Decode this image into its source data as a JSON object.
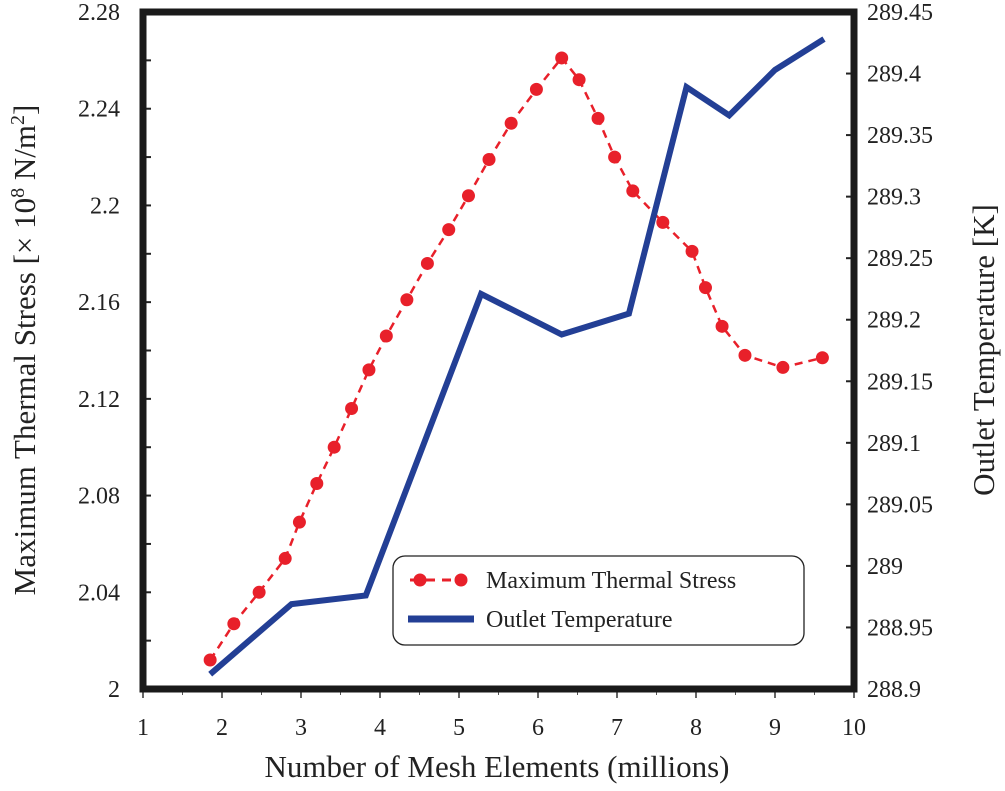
{
  "chart_data": {
    "type": "line",
    "xlabel": "Number of Mesh Elements (millions)",
    "ylabel_left_main": "Maximum Thermal Stress [× 10",
    "ylabel_left_exp": "8",
    "ylabel_left_unit": " N/m",
    "ylabel_left_sq": "2",
    "ylabel_left_end": "]",
    "ylabel_right": "Outlet Temperature [K]",
    "xlim": [
      1,
      10
    ],
    "ylim_left": [
      2.0,
      2.28
    ],
    "ylim_right": [
      288.9,
      289.45
    ],
    "x_ticks": [
      {
        "value": 1,
        "label": "1"
      },
      {
        "value": 2,
        "label": "2"
      },
      {
        "value": 3,
        "label": "3"
      },
      {
        "value": 4,
        "label": "4"
      },
      {
        "value": 5,
        "label": "5"
      },
      {
        "value": 6,
        "label": "6"
      },
      {
        "value": 7,
        "label": "7"
      },
      {
        "value": 8,
        "label": "8"
      },
      {
        "value": 9,
        "label": "9"
      },
      {
        "value": 10,
        "label": "10"
      }
    ],
    "y_left_ticks": [
      {
        "value": 2.0,
        "label": "2"
      },
      {
        "value": 2.04,
        "label": "2.04"
      },
      {
        "value": 2.08,
        "label": "2.08"
      },
      {
        "value": 2.12,
        "label": "2.12"
      },
      {
        "value": 2.16,
        "label": "2.16"
      },
      {
        "value": 2.2,
        "label": "2.2"
      },
      {
        "value": 2.24,
        "label": "2.24"
      },
      {
        "value": 2.28,
        "label": "2.28"
      }
    ],
    "y_right_ticks": [
      {
        "value": 288.9,
        "label": "288.9"
      },
      {
        "value": 288.95,
        "label": "288.95"
      },
      {
        "value": 289.0,
        "label": "289"
      },
      {
        "value": 289.05,
        "label": "289.05"
      },
      {
        "value": 289.1,
        "label": "289.1"
      },
      {
        "value": 289.15,
        "label": "289.15"
      },
      {
        "value": 289.2,
        "label": "289.2"
      },
      {
        "value": 289.25,
        "label": "289.25"
      },
      {
        "value": 289.3,
        "label": "289.3"
      },
      {
        "value": 289.35,
        "label": "289.35"
      },
      {
        "value": 289.4,
        "label": "289.4"
      },
      {
        "value": 289.45,
        "label": "289.45"
      }
    ],
    "series": [
      {
        "name": "Maximum Thermal Stress",
        "axis": "left",
        "style": "dashed-markers",
        "color": "#e8202a",
        "x": [
          1.85,
          2.15,
          2.47,
          2.8,
          2.98,
          3.2,
          3.42,
          3.64,
          3.86,
          4.08,
          4.34,
          4.6,
          4.87,
          5.12,
          5.38,
          5.66,
          5.98,
          6.3,
          6.52,
          6.76,
          6.97,
          7.2,
          7.58,
          7.95,
          8.12,
          8.33,
          8.62,
          9.1,
          9.6
        ],
        "values": [
          2.012,
          2.027,
          2.04,
          2.054,
          2.069,
          2.085,
          2.1,
          2.116,
          2.132,
          2.146,
          2.161,
          2.176,
          2.19,
          2.204,
          2.219,
          2.234,
          2.248,
          2.261,
          2.252,
          2.236,
          2.22,
          2.206,
          2.193,
          2.181,
          2.166,
          2.15,
          2.138,
          2.133,
          2.137
        ]
      },
      {
        "name": "Outlet Temperature",
        "axis": "right",
        "style": "solid",
        "color": "#233f95",
        "x": [
          1.85,
          2.88,
          3.82,
          5.28,
          6.3,
          7.15,
          7.88,
          8.42,
          9.0,
          9.62
        ],
        "values": [
          288.912,
          288.969,
          288.976,
          289.221,
          289.188,
          289.205,
          289.389,
          289.366,
          289.403,
          289.428
        ]
      }
    ]
  }
}
